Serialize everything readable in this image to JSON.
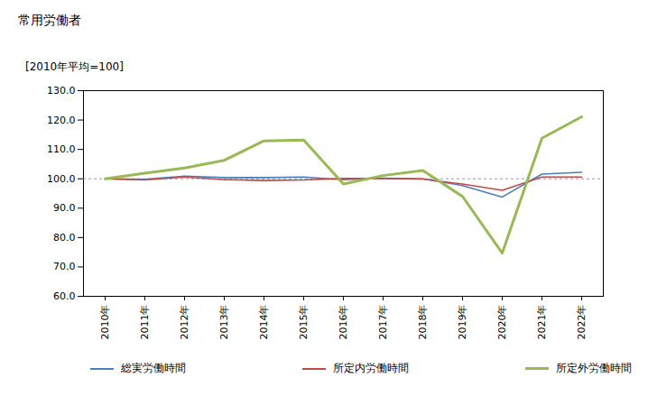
{
  "chart_data": {
    "type": "line",
    "title": "常用労働者",
    "subtitle": "[2010年平均=100]",
    "categories": [
      "2010年",
      "2011年",
      "2012年",
      "2013年",
      "2014年",
      "2015年",
      "2016年",
      "2017年",
      "2018年",
      "2019年",
      "2020年",
      "2021年",
      "2022年"
    ],
    "series": [
      {
        "name": "総実労働時間",
        "color": "#4a7ebb",
        "values": [
          100.0,
          99.8,
          100.9,
          100.4,
          100.4,
          100.6,
          99.7,
          100.2,
          100.0,
          97.7,
          93.8,
          101.6,
          102.2
        ]
      },
      {
        "name": "所定内労働時間",
        "color": "#be4b48",
        "values": [
          100.0,
          99.6,
          100.6,
          99.7,
          99.4,
          99.6,
          100.1,
          100.1,
          99.9,
          98.2,
          96.1,
          100.6,
          100.6
        ]
      },
      {
        "name": "所定外労働時間",
        "color": "#98b954",
        "values": [
          100.0,
          101.9,
          103.7,
          106.3,
          112.9,
          113.2,
          98.2,
          101.1,
          102.8,
          94.0,
          74.7,
          113.8,
          121.1
        ]
      }
    ],
    "baseline": 100,
    "ylim": [
      60,
      130
    ],
    "yticks": [
      {
        "value": 60,
        "label": "60.0"
      },
      {
        "value": 70,
        "label": "70.0"
      },
      {
        "value": 80,
        "label": "80.0"
      },
      {
        "value": 90,
        "label": "90.0"
      },
      {
        "value": 100,
        "label": "100.0"
      },
      {
        "value": 110,
        "label": "110.0"
      },
      {
        "value": 120,
        "label": "120.0"
      },
      {
        "value": 130,
        "label": "130.0"
      }
    ],
    "grid": false,
    "legend": "bottom"
  }
}
